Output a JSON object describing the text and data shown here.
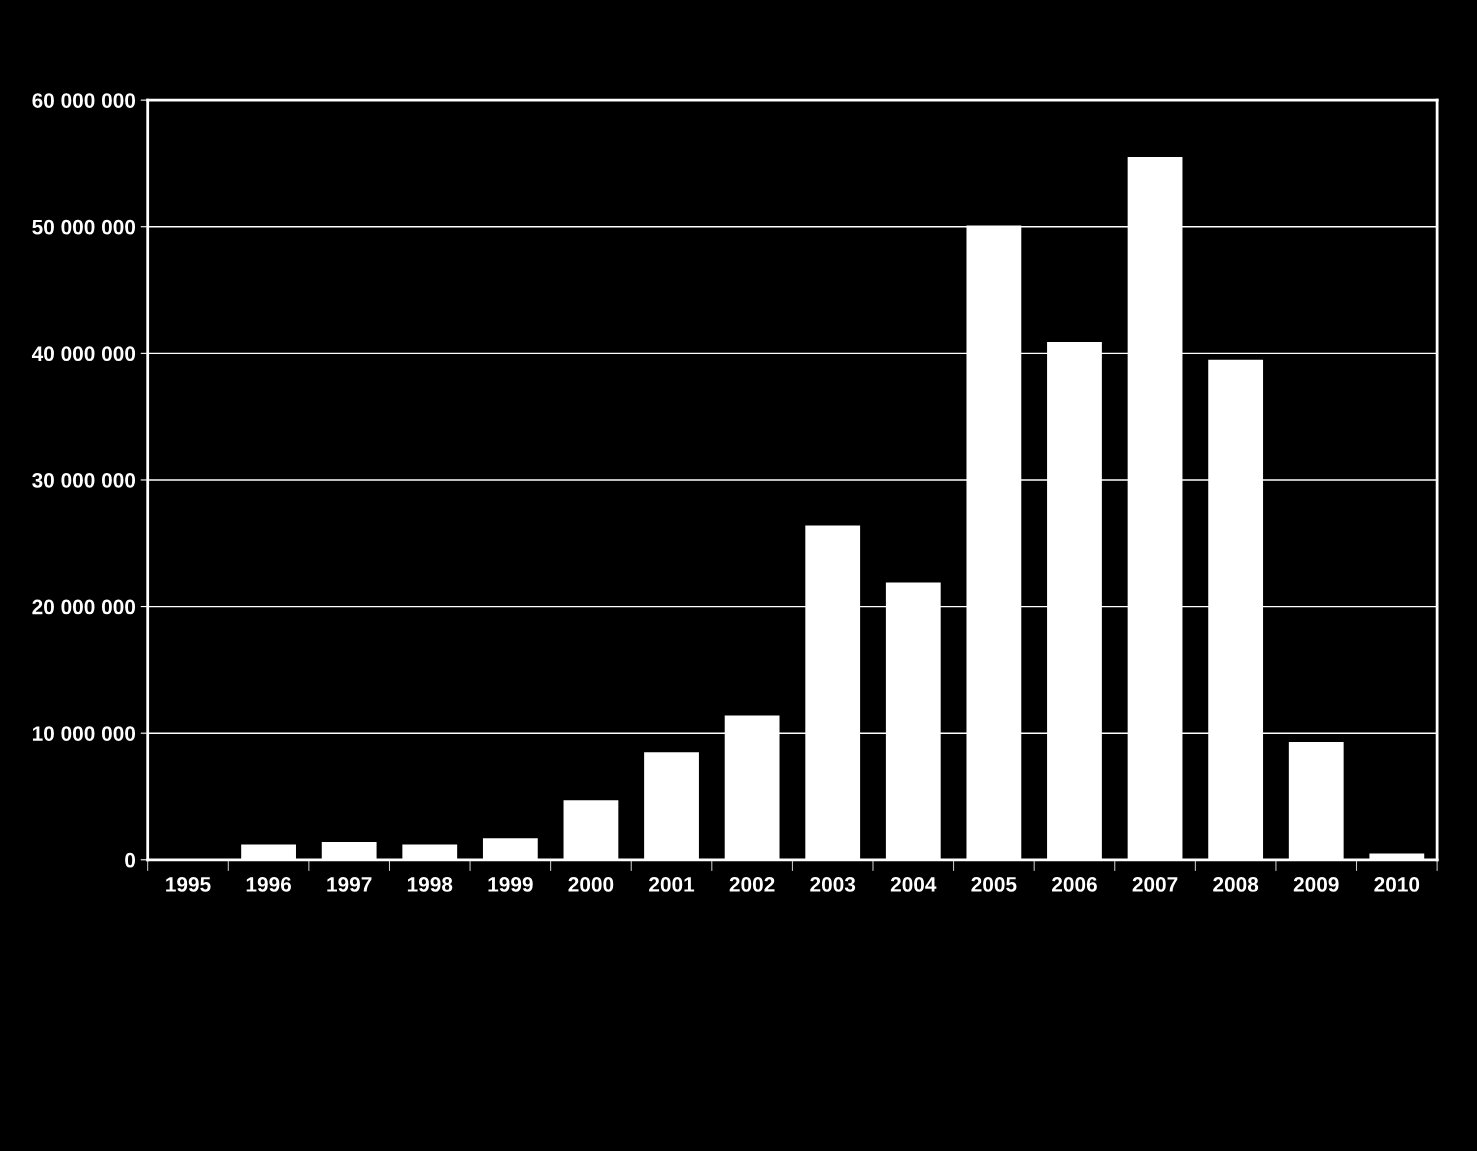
{
  "chart_data": {
    "type": "bar",
    "categories": [
      "1995",
      "1996",
      "1997",
      "1998",
      "1999",
      "2000",
      "2001",
      "2002",
      "2003",
      "2004",
      "2005",
      "2006",
      "2007",
      "2008",
      "2009",
      "2010"
    ],
    "values": [
      0,
      1200000,
      1400000,
      1200000,
      1700000,
      4700000,
      8500000,
      11400000,
      26400000,
      21900000,
      50100000,
      40900000,
      55500000,
      39500000,
      9300000,
      500000
    ],
    "color": "#ffffff",
    "ylim": [
      0,
      60000000
    ],
    "yticks": [
      {
        "value": 0,
        "label": "0"
      },
      {
        "value": 10000000,
        "label": "10 000 000"
      },
      {
        "value": 20000000,
        "label": "20 000 000"
      },
      {
        "value": 30000000,
        "label": "30 000 000"
      },
      {
        "value": 40000000,
        "label": "40 000 000"
      },
      {
        "value": 50000000,
        "label": "50 000 000"
      },
      {
        "value": 60000000,
        "label": "60 000 000"
      }
    ],
    "grid": "y",
    "legend": false
  }
}
